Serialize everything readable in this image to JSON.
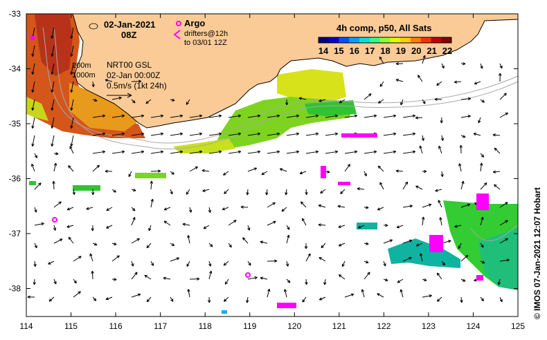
{
  "header": {
    "date": "02-Jan-2021",
    "hour": "08Z",
    "product": "4h comp, p50, All Sats"
  },
  "legend": {
    "argo_label": "Argo",
    "drifters_line1": "drifters@12h",
    "drifters_line2": "to 03/01 12Z",
    "argo_color": "#ff00ff",
    "drifter_color": "#ff00ff"
  },
  "annotations": {
    "contour_200": "200m",
    "contour_1000": "1000m",
    "model_line": "NRT00 GSL",
    "model_time": "02-Jan 00:00Z",
    "velocity_scale": "0.5m/s (1kt 24h)"
  },
  "colorbar": {
    "ticks": [
      "14",
      "15",
      "16",
      "17",
      "18",
      "19",
      "20",
      "21",
      "22"
    ],
    "colors": [
      "#00007f",
      "#0000d0",
      "#0050ff",
      "#00a0ff",
      "#00e0e0",
      "#30ff90",
      "#90ff30",
      "#e0ff00",
      "#ffd000",
      "#ff8000",
      "#ff3000",
      "#c00000",
      "#800000"
    ]
  },
  "axes": {
    "x_ticks": [
      "114",
      "115",
      "116",
      "117",
      "118",
      "119",
      "120",
      "121",
      "122",
      "123",
      "124",
      "125"
    ],
    "y_ticks": [
      "-33",
      "-34",
      "-35",
      "-36",
      "-37",
      "-38"
    ]
  },
  "colors": {
    "land": "#fbcb97",
    "coast": "#000000",
    "contour": "#a0a0a0"
  },
  "credit": "© IMOS 07-Jan-2021 12:07 Hobart"
}
